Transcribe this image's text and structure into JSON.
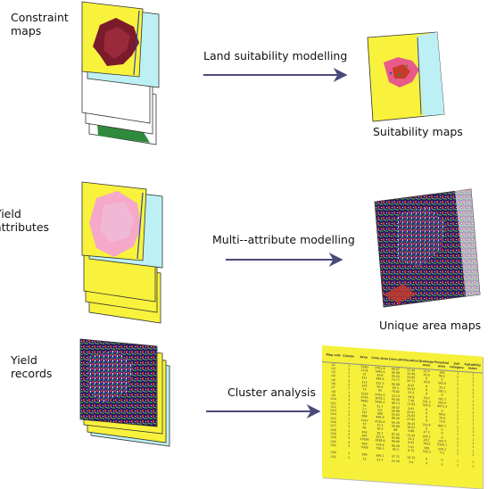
{
  "rows": [
    {
      "input_label_lines": [
        "Constraint",
        "maps"
      ],
      "process_label": "Land suitability modelling",
      "output_label": "Suitability maps",
      "input_icon": "stacked-constraint-maps",
      "output_icon": "suitability-map"
    },
    {
      "input_label_lines": [
        "Yield",
        "attributes"
      ],
      "process_label": "Multi--attribute modelling",
      "output_label": "Unique area maps",
      "input_icon": "stacked-yield-attribute-maps",
      "output_icon": "unique-area-map"
    },
    {
      "input_label_lines": [
        "Yield",
        "records"
      ],
      "process_label": "Cluster analysis",
      "output_label": "",
      "input_icon": "stacked-yield-record-maps",
      "output_icon": "cluster-table"
    }
  ],
  "table": {
    "headers": [
      "Map unit",
      "Cluster",
      "Area",
      "Conn.Area",
      "Conn.yld",
      "Elevation",
      "Drainage area",
      "Potential area",
      "Soil category",
      "Suitability index"
    ],
    "rows": [
      [
        "U1",
        "1",
        "5160",
        "2761.8",
        "46.97",
        "31.42",
        "47.4",
        "265",
        "1",
        "1"
      ],
      [
        "U2",
        "3",
        "1774",
        "1445.6",
        "95.99",
        "15.99",
        "45.6",
        "66.2",
        "2",
        "1"
      ],
      [
        "U3",
        "1",
        "21",
        "26.8",
        "40.43",
        "23.85",
        "0",
        "0",
        "1",
        "1"
      ],
      [
        "U4",
        "3",
        "411",
        "448.6",
        "73.77",
        "24.71",
        "30.9",
        "263.6",
        "1",
        "1"
      ],
      [
        "U5",
        "3",
        "213",
        "222.3",
        "99.88",
        "8.97",
        "0",
        "35.3",
        "1",
        "1"
      ],
      [
        "U6",
        "2",
        "274",
        "26.8",
        "93.3",
        "10.97",
        "0",
        "163.1",
        "1",
        "1"
      ],
      [
        "U7",
        "1",
        "73",
        "63",
        "78.62",
        "31.2",
        "0",
        "0",
        "1",
        "1"
      ],
      [
        "U8",
        "1",
        "3159",
        "2783.6",
        "33.13",
        "19.9",
        "78.3",
        "791.7",
        "1",
        "1"
      ],
      [
        "U9",
        "3",
        "4745",
        "3079.1",
        "40.56",
        "7.26",
        "331.3",
        "262.6",
        "1",
        "1"
      ],
      [
        "U10",
        "3",
        "9960",
        "5436.2",
        "88.13",
        "11.63",
        "305.2",
        "4071.4",
        "1",
        "1"
      ],
      [
        "U11",
        "3",
        "56",
        "21.7",
        "38.02",
        "4.87",
        "0",
        "0",
        "1",
        "1"
      ],
      [
        "U12",
        "1",
        "1.1",
        "0.6",
        "30.99",
        "24.91",
        "0",
        "89.6",
        "1",
        "1"
      ],
      [
        "U13",
        "1",
        "757",
        "698",
        "55.63",
        "25.83",
        "0",
        "16.9",
        "1",
        "1"
      ],
      [
        "U14",
        "3",
        "868",
        "448.9",
        "98.56",
        "27.82",
        "0",
        "13.6",
        "1",
        "1"
      ],
      [
        "U15",
        "1",
        "7977",
        "4120.4",
        "65.29",
        "18.25",
        "222.4",
        "897.7",
        "1",
        "1"
      ],
      [
        "U16",
        "1",
        "37",
        "31.3",
        "48.99",
        "16.01",
        "0",
        "0",
        "1",
        "1"
      ],
      [
        "U17",
        "3",
        "65",
        "36.3",
        "68",
        "3.88",
        "27.3",
        "0",
        "1",
        "1"
      ],
      [
        "U18",
        "3",
        "463",
        "36.7",
        "87.42",
        "11.42",
        "245.1",
        "0",
        "1",
        "1"
      ],
      [
        "U19",
        "3",
        "483",
        "321.4",
        "93.66",
        "13.3",
        "28.1",
        "243.7",
        "1",
        "1"
      ],
      [
        "U20",
        "3",
        "13636",
        "1938.6",
        "99.66",
        "8.67",
        "1023",
        "5325.1",
        "1",
        "1"
      ],
      [
        "U21",
        "3",
        "959",
        "379.8",
        "96.28",
        "7.47",
        "309",
        "226.1",
        "1",
        "1"
      ],
      [
        "U22",
        "3",
        "1009",
        "736.3",
        "93.3",
        "6.72",
        "332.3",
        "7.5",
        "1",
        "1"
      ],
      [
        "",
        "",
        "",
        "",
        "",
        "",
        "",
        "",
        "",
        ""
      ],
      [
        "U30",
        "3",
        "369",
        "266.1",
        "37.71",
        "10.72",
        "0",
        "0",
        "1",
        "1"
      ],
      [
        "U31",
        "3",
        "13",
        "27.7",
        "22.26",
        "3.9",
        "0",
        "0",
        "1",
        "1"
      ]
    ]
  }
}
